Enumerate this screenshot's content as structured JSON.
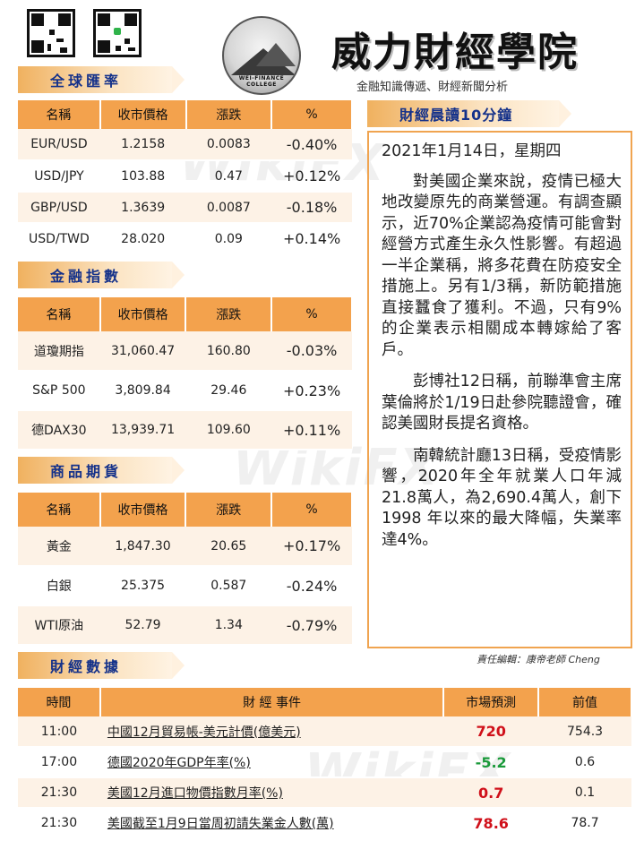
{
  "header": {
    "title": "威力財經學院",
    "subtitle": "金融知識傳遞、財經新聞分析",
    "logo_text": "WEI-FINANCE COLLEGE"
  },
  "sections": {
    "fx": "全球匯率",
    "indices": "金融指數",
    "commodities": "商品期貨",
    "econ": "財經數據",
    "news": "財經晨讀10分鐘"
  },
  "market_columns": [
    "名稱",
    "收市價格",
    "漲跌",
    "%"
  ],
  "fx_rows": [
    {
      "name": "EUR/USD",
      "price": "1.2158",
      "change": "0.0083",
      "pct": "-0.40%"
    },
    {
      "name": "USD/JPY",
      "price": "103.88",
      "change": "0.47",
      "pct": "+0.12%"
    },
    {
      "name": "GBP/USD",
      "price": "1.3639",
      "change": "0.0087",
      "pct": "-0.18%"
    },
    {
      "name": "USD/TWD",
      "price": "28.020",
      "change": "0.09",
      "pct": "+0.14%"
    }
  ],
  "index_rows": [
    {
      "name": "道瓊期指",
      "price": "31,060.47",
      "change": "160.80",
      "pct": "-0.03%"
    },
    {
      "name": "S&P 500",
      "price": "3,809.84",
      "change": "29.46",
      "pct": "+0.23%"
    },
    {
      "name": "德DAX30",
      "price": "13,939.71",
      "change": "109.60",
      "pct": "+0.11%"
    }
  ],
  "commodity_rows": [
    {
      "name": "黃金",
      "price": "1,847.30",
      "change": "20.65",
      "pct": "+0.17%"
    },
    {
      "name": "白銀",
      "price": "25.375",
      "change": "0.587",
      "pct": "-0.24%"
    },
    {
      "name": "WTI原油",
      "price": "52.79",
      "change": "1.34",
      "pct": "-0.79%"
    }
  ],
  "colors": {
    "up": "#d0101a",
    "down": "#1a9a3a",
    "accent": "#f3a24d",
    "tag_text": "#14318a"
  },
  "article": {
    "date": "2021年1月14日，星期四",
    "paragraphs": [
      "對美國企業來說，疫情已極大地改變原先的商業營運。有調查顯示，近70%企業認為疫情可能會對經營方式產生永久性影響。有超過一半企業稱，將多花費在防疫安全措施上。另有1/3稱，新防範措施直接蠶食了獲利。不過，只有9%的企業表示相關成本轉嫁給了客戶。",
      "彭博社12日稱，前聯準會主席葉倫將於1/19日赴參院聽證會，確認美國財長提名資格。",
      "南韓統計廳13日稱，受疫情影響，2020年全年就業人口年減21.8萬人，為2,690.4萬人，創下1998 年以來的最大降幅，失業率達4%。"
    ],
    "editor": "責任編輯：康帝老師 Cheng"
  },
  "econ_columns": [
    "時間",
    "財 經 事件",
    "市場預測",
    "前值"
  ],
  "econ_rows": [
    {
      "time": "11:00",
      "event": "中國12月貿易帳-美元計價(億美元)",
      "forecast": "720",
      "forecast_color": "red",
      "prev": "754.3"
    },
    {
      "time": "17:00",
      "event": "德國2020年GDP年率(%)",
      "forecast": "-5.2",
      "forecast_color": "green",
      "prev": "0.6"
    },
    {
      "time": "21:30",
      "event": "美國12月進口物價指數月率(%)",
      "forecast": "0.7",
      "forecast_color": "red",
      "prev": "0.1"
    },
    {
      "time": "21:30",
      "event": "美國截至1月9日當周初請失業金人數(萬)",
      "forecast": "78.6",
      "forecast_color": "red",
      "prev": "78.7"
    }
  ],
  "watermark": "WikiFX"
}
